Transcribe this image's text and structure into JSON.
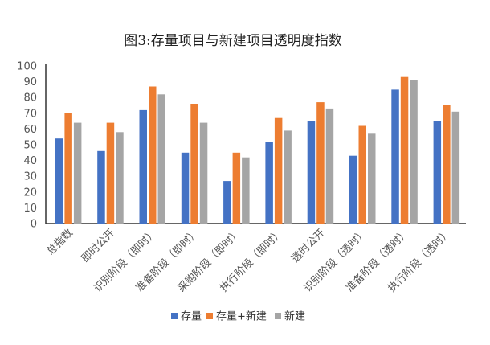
{
  "chart_data": {
    "type": "bar",
    "title": "图3:存量项目与新建项目透明度指数",
    "categories": [
      "总指数",
      "即时公开",
      "识别阶段（即时）",
      "准备阶段（即时）",
      "采购阶段（即时）",
      "执行阶段（即时）",
      "透时公开",
      "识别阶段（透时）",
      "准备阶段（透时）",
      "执行阶段（透时）"
    ],
    "series": [
      {
        "name": "存量",
        "color": "#4472c4",
        "values": [
          54,
          46,
          72,
          45,
          27,
          52,
          65,
          43,
          85,
          65
        ]
      },
      {
        "name": "存量+新建",
        "color": "#ed7d31",
        "values": [
          70,
          64,
          87,
          76,
          45,
          67,
          77,
          62,
          93,
          75
        ]
      },
      {
        "name": "新建",
        "color": "#a5a5a5",
        "values": [
          64,
          58,
          82,
          64,
          42,
          59,
          73,
          57,
          91,
          71
        ]
      }
    ],
    "yticks": [
      "0",
      "10",
      "20",
      "30",
      "40",
      "50",
      "60",
      "70",
      "80",
      "90",
      "100"
    ],
    "ylim": [
      0,
      100
    ],
    "xlabel": "",
    "ylabel": "",
    "grid": false,
    "legend_position": "bottom"
  }
}
